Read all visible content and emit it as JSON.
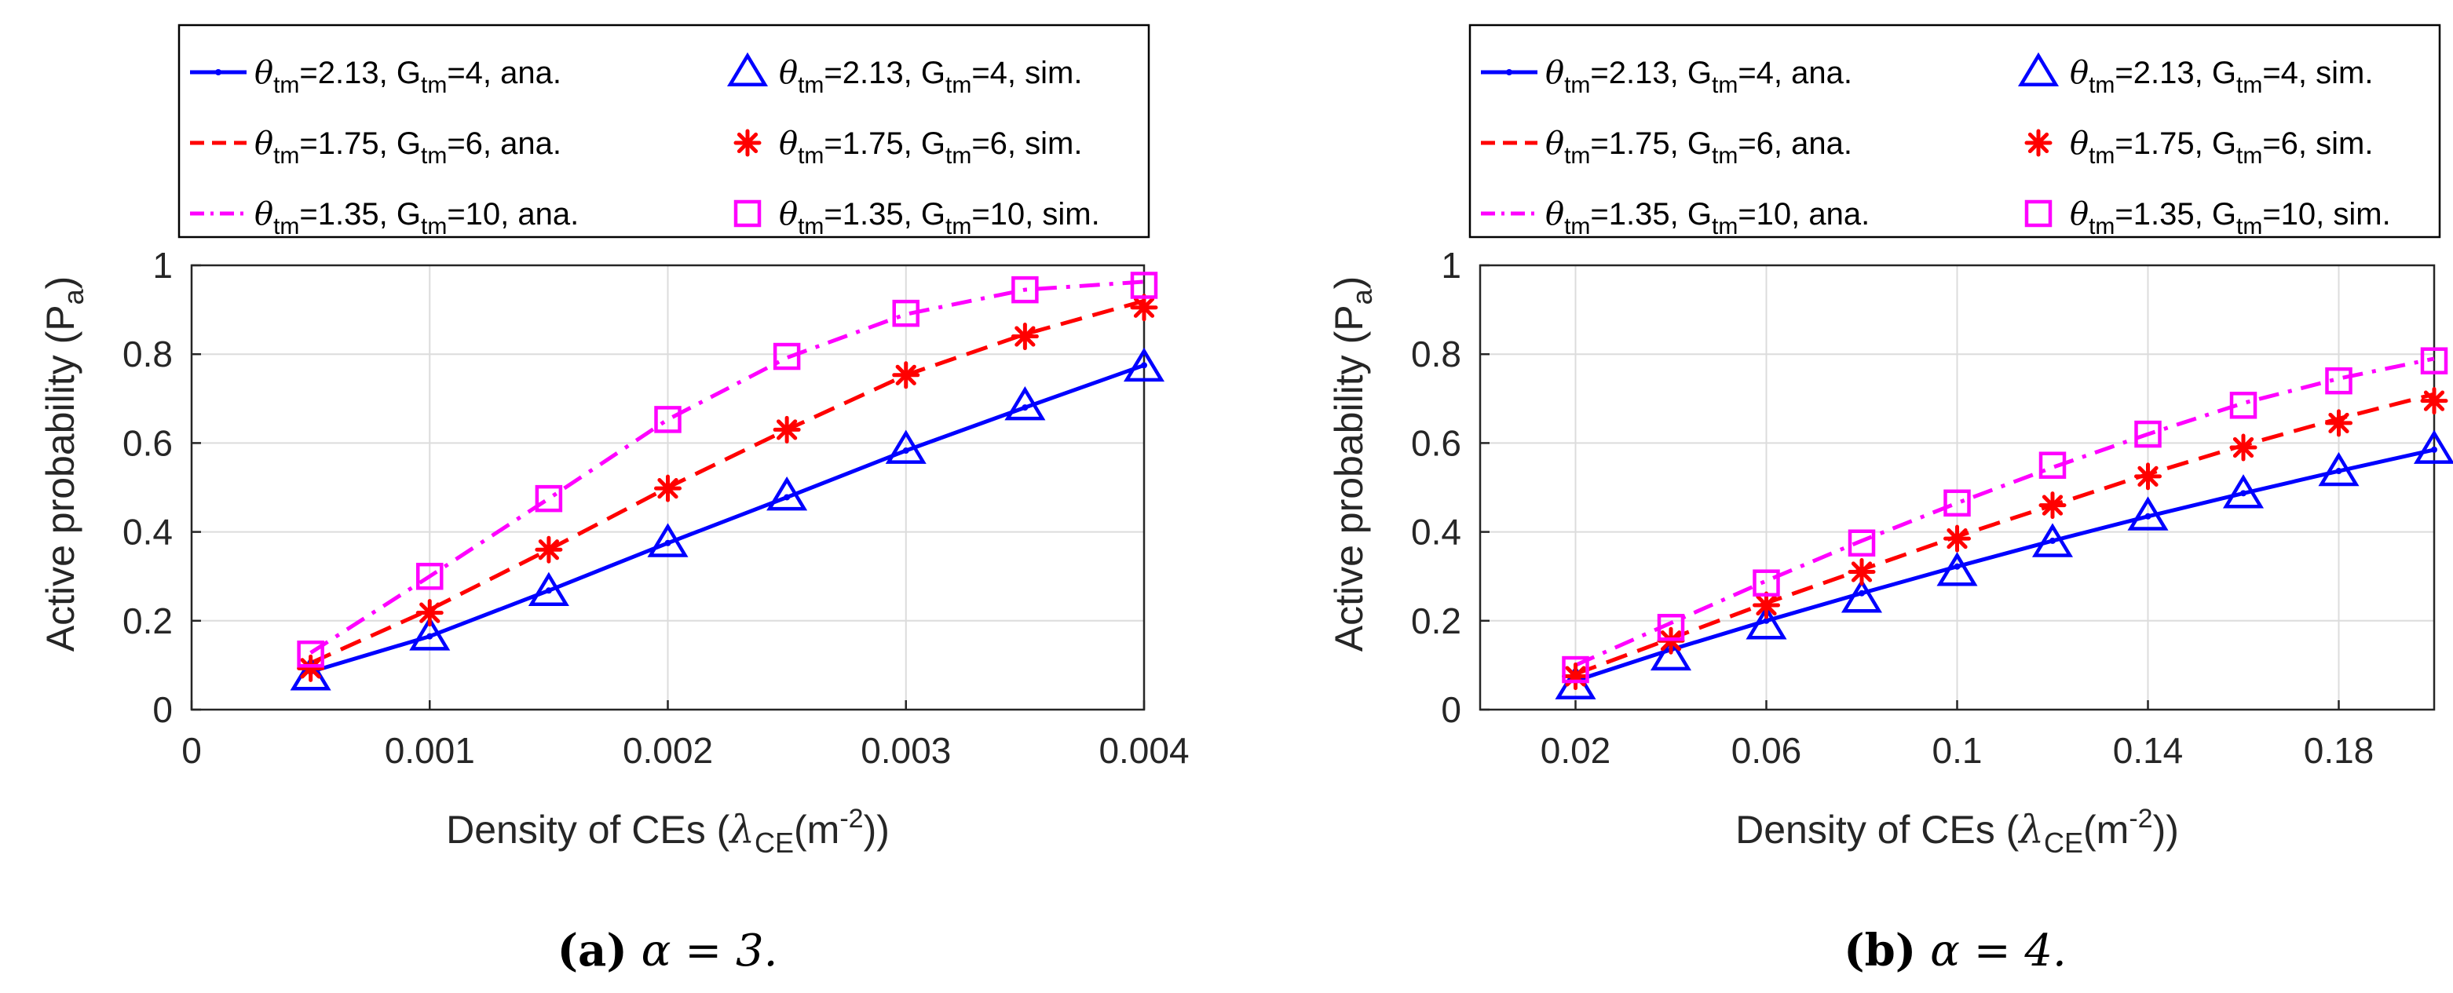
{
  "colors": {
    "blue": "#0000ff",
    "red": "#ff0000",
    "magenta": "#ff00ff"
  },
  "chart_data": [
    {
      "type": "line",
      "caption_label": "(a)",
      "caption_math": "α = 3.",
      "xlabel_main": "Density of CEs (",
      "xlabel_symbol": "λ",
      "xlabel_sub": "CE",
      "xlabel_unit_open": "(m",
      "xlabel_sup": "-2",
      "xlabel_close": "))",
      "ylabel_main": "Active probability (P",
      "ylabel_sub": "a",
      "ylabel_close": ")",
      "xlim": [
        0,
        0.004
      ],
      "ylim": [
        0,
        1
      ],
      "x_ticks": [
        0,
        0.001,
        0.002,
        0.003,
        0.004
      ],
      "x_tick_labels": [
        "0",
        "0.001",
        "0.002",
        "0.003",
        "0.004"
      ],
      "y_ticks": [
        0,
        0.2,
        0.4,
        0.6,
        0.8,
        1
      ],
      "y_tick_labels": [
        "0",
        "0.2",
        "0.4",
        "0.6",
        "0.8",
        "1"
      ],
      "grid": true,
      "legend_placement": "top",
      "x": [
        0.0005,
        0.001,
        0.0015,
        0.002,
        0.0025,
        0.003,
        0.0035,
        0.004
      ],
      "series": [
        {
          "name": "θtm=2.13, Gtm=4, ana.",
          "theta": "2.13",
          "gain": "4",
          "suffix": "ana.",
          "kind": "line",
          "style": "solid",
          "color": "blue",
          "values": [
            0.085,
            0.165,
            0.268,
            0.375,
            0.478,
            0.583,
            0.68,
            0.775
          ]
        },
        {
          "name": "θtm=1.75, Gtm=6, ana.",
          "theta": "1.75",
          "gain": "6",
          "suffix": "ana.",
          "kind": "line",
          "style": "dashed",
          "color": "red",
          "values": [
            0.105,
            0.225,
            0.36,
            0.5,
            0.63,
            0.753,
            0.845,
            0.92
          ]
        },
        {
          "name": "θtm=1.35, Gtm=10, ana.",
          "theta": "1.35",
          "gain": "10",
          "suffix": "ana.",
          "kind": "line",
          "style": "dashdot",
          "color": "magenta",
          "values": [
            0.128,
            0.3,
            0.475,
            0.653,
            0.792,
            0.89,
            0.945,
            0.963
          ]
        },
        {
          "name": "θtm=2.13, Gtm=4, sim.",
          "theta": "2.13",
          "gain": "4",
          "suffix": "sim.",
          "kind": "marker",
          "marker": "triangle",
          "color": "blue",
          "values": [
            0.075,
            0.165,
            0.265,
            0.375,
            0.48,
            0.585,
            0.683,
            0.77
          ]
        },
        {
          "name": "θtm=1.75, Gtm=6, sim.",
          "theta": "1.75",
          "gain": "6",
          "suffix": "sim.",
          "kind": "marker",
          "marker": "asterisk",
          "color": "red",
          "values": [
            0.093,
            0.218,
            0.36,
            0.498,
            0.63,
            0.753,
            0.84,
            0.905
          ]
        },
        {
          "name": "θtm=1.35, Gtm=10, sim.",
          "theta": "1.35",
          "gain": "10",
          "suffix": "sim.",
          "kind": "marker",
          "marker": "square",
          "color": "magenta",
          "values": [
            0.125,
            0.3,
            0.475,
            0.653,
            0.795,
            0.892,
            0.945,
            0.955
          ]
        }
      ]
    },
    {
      "type": "line",
      "caption_label": "(b)",
      "caption_math": "α = 4.",
      "xlabel_main": "Density of CEs (",
      "xlabel_symbol": "λ",
      "xlabel_sub": "CE",
      "xlabel_unit_open": "(m",
      "xlabel_sup": "-2",
      "xlabel_close": "))",
      "ylabel_main": "Active probability (P",
      "ylabel_sub": "a",
      "ylabel_close": ")",
      "xlim": [
        0,
        0.2
      ],
      "ylim": [
        0,
        1
      ],
      "x_ticks": [
        0.02,
        0.06,
        0.1,
        0.14,
        0.18
      ],
      "x_tick_labels": [
        "0.02",
        "0.06",
        "0.1",
        "0.14",
        "0.18"
      ],
      "y_ticks": [
        0,
        0.2,
        0.4,
        0.6,
        0.8,
        1
      ],
      "y_tick_labels": [
        "0",
        "0.2",
        "0.4",
        "0.6",
        "0.8",
        "1"
      ],
      "grid": true,
      "legend_placement": "top",
      "x": [
        0.02,
        0.04,
        0.06,
        0.08,
        0.1,
        0.12,
        0.14,
        0.16,
        0.18,
        0.2
      ],
      "series": [
        {
          "name": "θtm=2.13, Gtm=4, ana.",
          "theta": "2.13",
          "gain": "4",
          "suffix": "ana.",
          "kind": "line",
          "style": "solid",
          "color": "blue",
          "values": [
            0.065,
            0.135,
            0.2,
            0.262,
            0.322,
            0.38,
            0.435,
            0.487,
            0.537,
            0.585
          ]
        },
        {
          "name": "θtm=1.75, Gtm=6, ana.",
          "theta": "1.75",
          "gain": "6",
          "suffix": "ana.",
          "kind": "line",
          "style": "dashed",
          "color": "red",
          "values": [
            0.08,
            0.16,
            0.24,
            0.315,
            0.39,
            0.46,
            0.53,
            0.595,
            0.655,
            0.71
          ]
        },
        {
          "name": "θtm=1.35, Gtm=10, ana.",
          "theta": "1.35",
          "gain": "10",
          "suffix": "ana.",
          "kind": "line",
          "style": "dashdot",
          "color": "magenta",
          "values": [
            0.1,
            0.195,
            0.29,
            0.38,
            0.465,
            0.545,
            0.62,
            0.69,
            0.745,
            0.79
          ]
        },
        {
          "name": "θtm=2.13, Gtm=4, sim.",
          "theta": "2.13",
          "gain": "4",
          "suffix": "sim.",
          "kind": "marker",
          "marker": "triangle",
          "color": "blue",
          "values": [
            0.055,
            0.12,
            0.19,
            0.25,
            0.31,
            0.375,
            0.435,
            0.485,
            0.535,
            0.585
          ]
        },
        {
          "name": "θtm=1.75, Gtm=6, sim.",
          "theta": "1.75",
          "gain": "6",
          "suffix": "sim.",
          "kind": "marker",
          "marker": "asterisk",
          "color": "red",
          "values": [
            0.075,
            0.155,
            0.235,
            0.31,
            0.385,
            0.46,
            0.525,
            0.59,
            0.645,
            0.695
          ]
        },
        {
          "name": "θtm=1.35, Gtm=10, sim.",
          "theta": "1.35",
          "gain": "10",
          "suffix": "sim.",
          "kind": "marker",
          "marker": "square",
          "color": "magenta",
          "values": [
            0.09,
            0.185,
            0.285,
            0.375,
            0.465,
            0.55,
            0.62,
            0.685,
            0.74,
            0.785
          ]
        }
      ]
    }
  ]
}
